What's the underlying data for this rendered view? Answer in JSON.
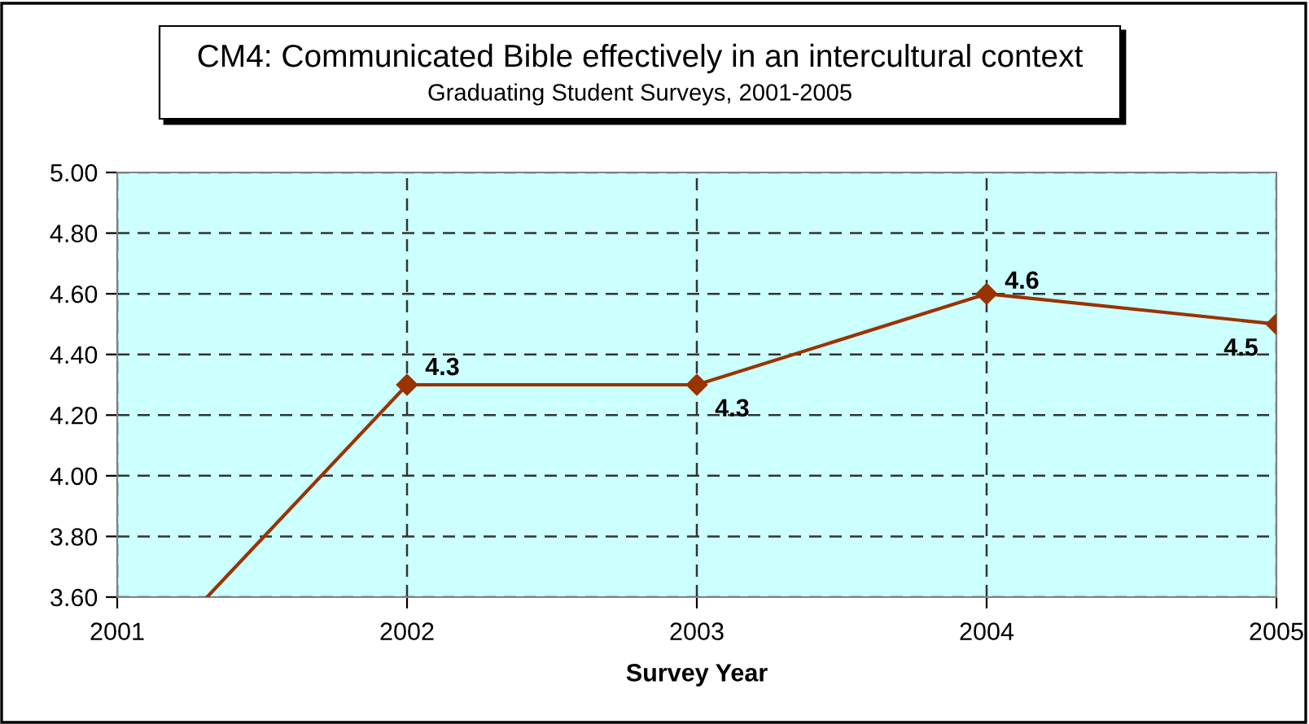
{
  "chart_data": {
    "type": "line",
    "title": "CM4: Communicated Bible effectively in an intercultural context",
    "subtitle": "Graduating Student Surveys, 2001-2005",
    "xlabel": "Survey Year",
    "series": [
      {
        "color": "#993300",
        "x": [
          2002,
          2003,
          2004,
          2005
        ],
        "values": [
          4.3,
          4.3,
          4.6,
          4.5
        ],
        "value_labels": [
          "4.3",
          "4.3",
          "4.6",
          "4.5"
        ],
        "marker": "diamond"
      },
      {
        "color": "#993300",
        "x": [
          2001.31,
          2002
        ],
        "values": [
          3.6,
          4.3
        ],
        "marker": "none"
      }
    ],
    "xlim": [
      2001,
      2005
    ],
    "xticks": [
      2001,
      2002,
      2003,
      2004,
      2005
    ],
    "ylim": [
      3.6,
      5.0
    ],
    "yticks": [
      {
        "value": 3.6,
        "label": "3.60"
      },
      {
        "value": 3.8,
        "label": "3.80"
      },
      {
        "value": 4.0,
        "label": "4.00"
      },
      {
        "value": 4.2,
        "label": "4.20"
      },
      {
        "value": 4.4,
        "label": "4.40"
      },
      {
        "value": 4.6,
        "label": "4.60"
      },
      {
        "value": 4.8,
        "label": "4.80"
      },
      {
        "value": 5.0,
        "label": "5.00"
      }
    ],
    "grid": true,
    "line_style": "solid",
    "legend": false
  }
}
